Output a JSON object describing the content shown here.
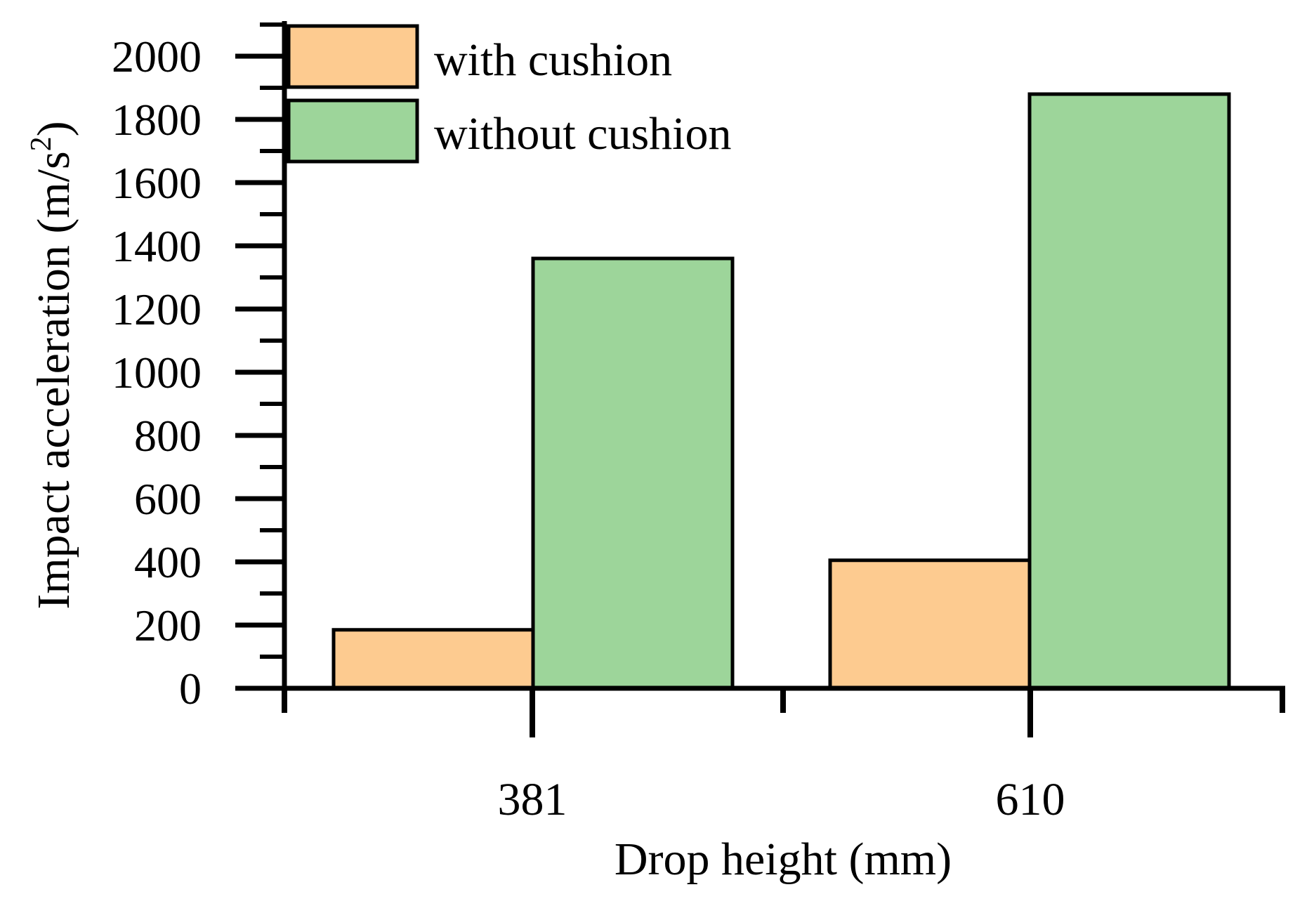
{
  "chart_data": {
    "type": "bar",
    "title": "",
    "xlabel": "Drop height (mm)",
    "ylabel_main": "Impact acceleration (m/s",
    "ylabel_sup": "2",
    "ylabel_close": ")",
    "categories": [
      "381",
      "610"
    ],
    "series": [
      {
        "name": "with cushion",
        "values": [
          185,
          405
        ],
        "color": "#FDCB90"
      },
      {
        "name": "without cushion",
        "values": [
          1360,
          1880
        ],
        "color": "#9DD59A"
      }
    ],
    "ylim": [
      0,
      2000
    ],
    "yticks": [
      "0",
      "200",
      "400",
      "600",
      "800",
      "1000",
      "1200",
      "1400",
      "1600",
      "1800",
      "2000"
    ],
    "grid": false,
    "legend_position": "top-left"
  }
}
